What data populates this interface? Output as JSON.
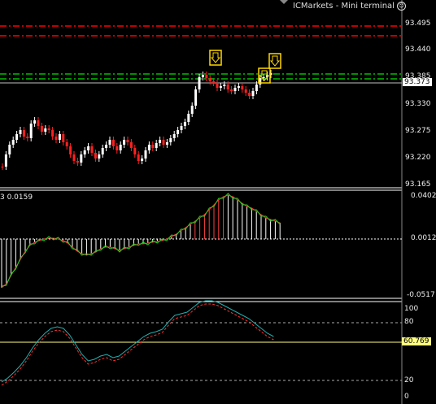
{
  "window": {
    "title": "ICMarkets - Mini terminal",
    "smile_icon": "smiley-icon"
  },
  "price_panel": {
    "axis_labels": [
      "93.495",
      "93.440",
      "93.385",
      "93.330",
      "93.275",
      "93.220",
      "93.165"
    ],
    "current_price": "93.373",
    "colors": {
      "bull_candle": "#ffffff",
      "bear_candle": "#ff2020",
      "resistance_line": "#ff0000",
      "support_line": "#00c000",
      "price_line": "#c0c0c0",
      "signal_box": "#ffd700"
    },
    "signal_icon": "down-arrow-signal-icon"
  },
  "macd_panel": {
    "indicator_text": "3 0.0159",
    "axis_labels": [
      "0.0402",
      "0.0012",
      "-0.0517"
    ],
    "colors": {
      "main_line": "#ff3030",
      "signal_line": "#20d020",
      "hist_up": "#ffffff",
      "hist_down": "#ff4040"
    }
  },
  "stoch_panel": {
    "axis_labels": [
      "100",
      "80",
      "20",
      "0"
    ],
    "current_value": "60.769",
    "colors": {
      "main_line": "#20b0b0",
      "signal_line": "#ff3030",
      "level_line": "#ffff80"
    }
  }
}
